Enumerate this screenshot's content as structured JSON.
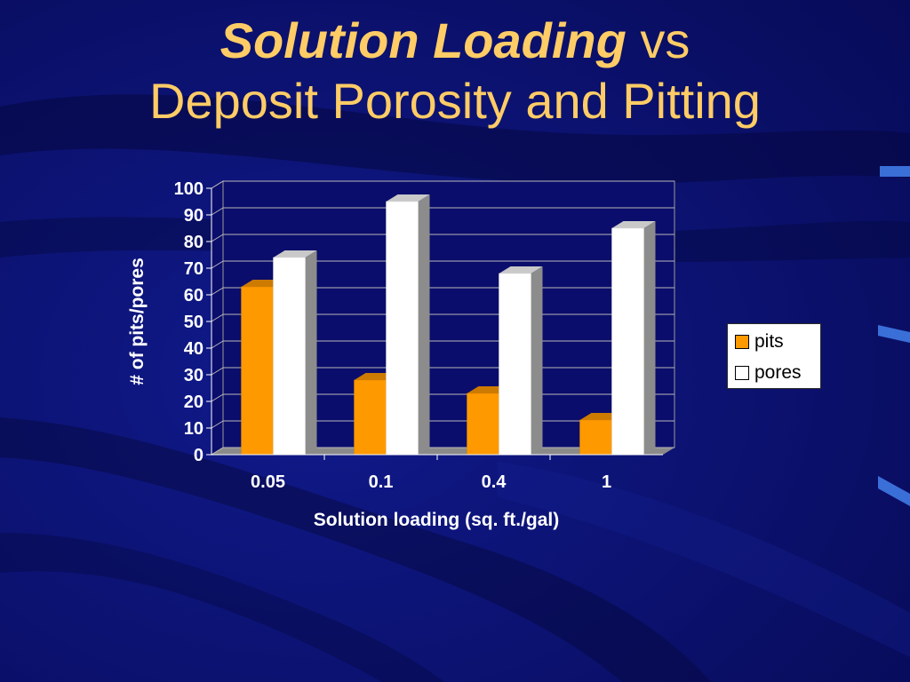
{
  "slide": {
    "title_italic": "Solution Loading",
    "title_rest": "vs",
    "subtitle": "Deposit Porosity and Pitting"
  },
  "colors": {
    "background": "#0a0d6b",
    "title": "#ffcc66",
    "pits": "#ff9900",
    "pores": "#ffffff"
  },
  "chart_data": {
    "type": "bar",
    "categories": [
      "0.05",
      "0.1",
      "0.4",
      "1"
    ],
    "series": [
      {
        "name": "pits",
        "values": [
          63,
          28,
          23,
          13
        ],
        "color": "#ff9900"
      },
      {
        "name": "pores",
        "values": [
          74,
          95,
          68,
          85
        ],
        "color": "#ffffff"
      }
    ],
    "xlabel": "Solution loading (sq. ft./gal)",
    "ylabel": "# of pits/pores",
    "ylim": [
      0,
      100
    ],
    "yticks": [
      0,
      10,
      20,
      30,
      40,
      50,
      60,
      70,
      80,
      90,
      100
    ],
    "grid": true,
    "legend": "right",
    "three_d": true
  }
}
